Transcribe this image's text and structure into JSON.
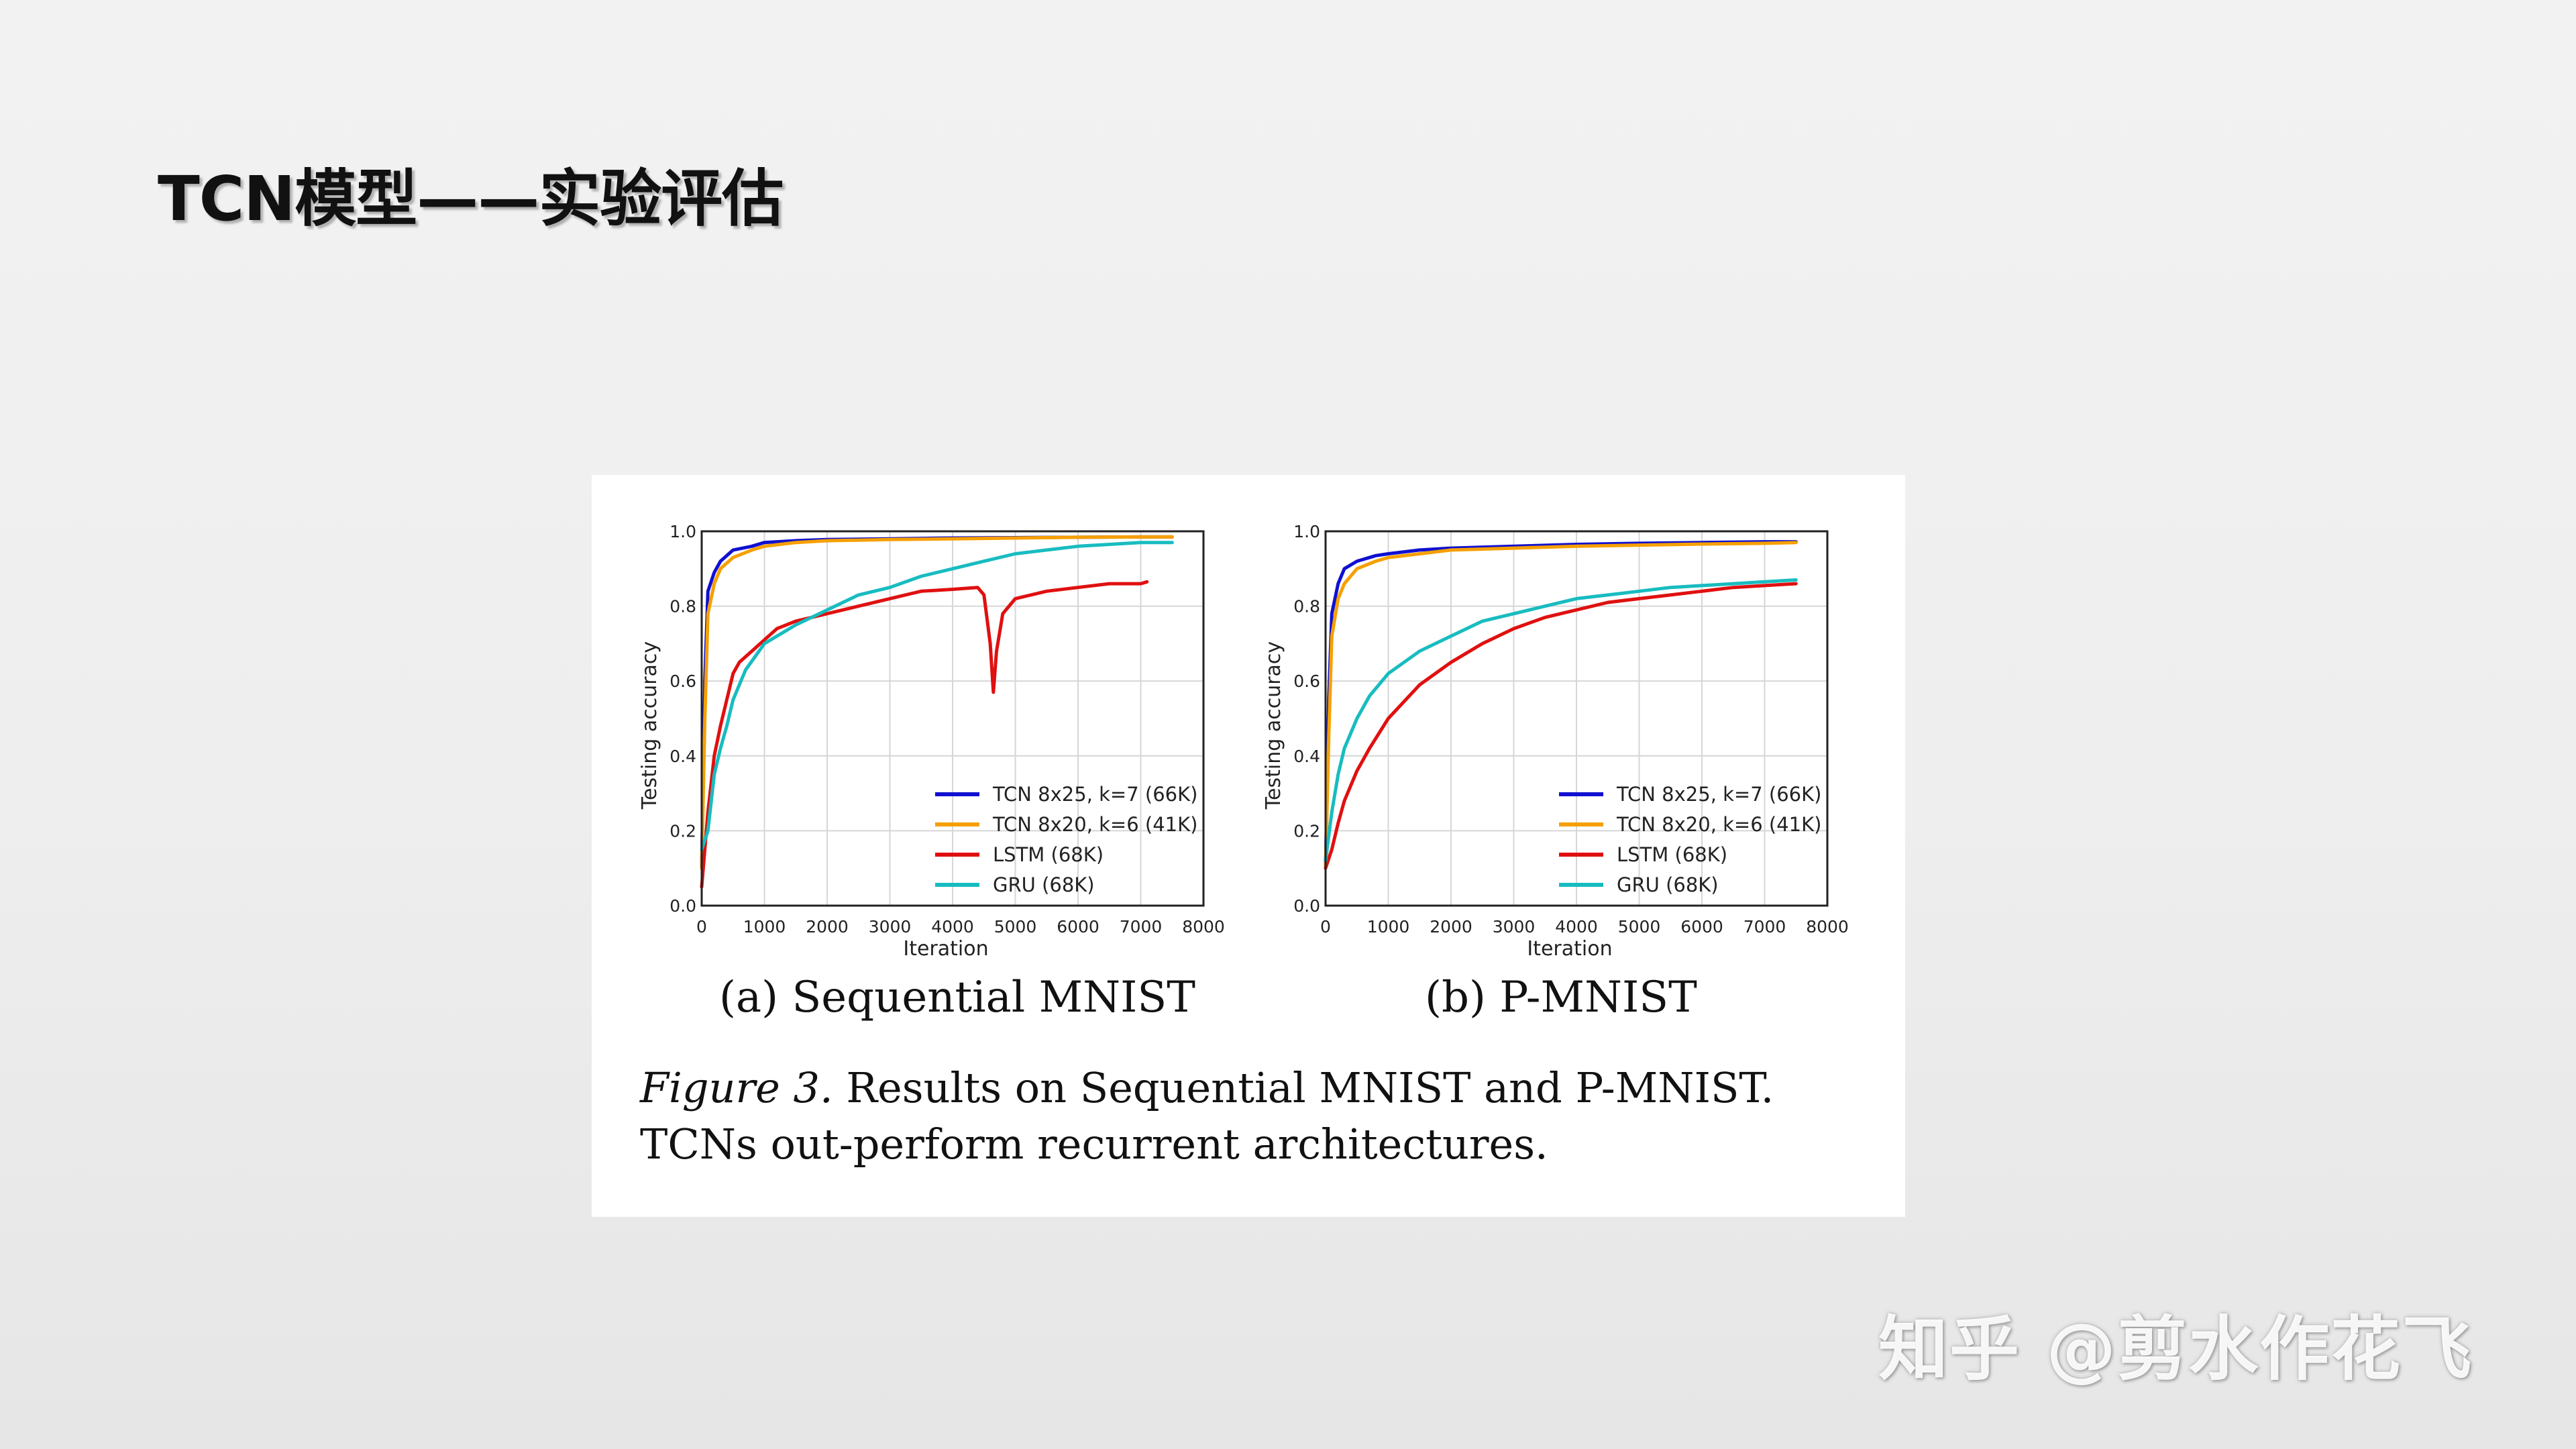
{
  "slide": {
    "title": "TCN模型——实验评估",
    "watermark": "知乎 @剪水作花飞"
  },
  "figure": {
    "caption_label": "Figure 3.",
    "caption_text": " Results on Sequential MNIST and P-MNIST. TCNs out-perform recurrent architectures.",
    "colors": {
      "TCN 8x25, k=7 (66K)": "#1010d0",
      "TCN 8x20, k=6 (41K)": "#f5a000",
      "LSTM (68K)": "#e01010",
      "GRU (68K)": "#18bcc0"
    }
  },
  "chart_data": [
    {
      "type": "line",
      "subtitle": "(a) Sequential MNIST",
      "xlabel": "Iteration",
      "ylabel": "Testing accuracy",
      "xlim": [
        0,
        8000
      ],
      "ylim": [
        0,
        1.0
      ],
      "xticks": [
        "0",
        "1000",
        "2000",
        "3000",
        "4000",
        "5000",
        "6000",
        "7000",
        "8000"
      ],
      "yticks": [
        "0.0",
        "0.2",
        "0.4",
        "0.6",
        "0.8",
        "1.0"
      ],
      "grid": true,
      "legend_position": "bottom-right",
      "series": [
        {
          "name": "TCN 8x25, k=7 (66K)",
          "x": [
            0,
            50,
            100,
            200,
            300,
            500,
            800,
            1000,
            1500,
            2000,
            3000,
            4000,
            5000,
            6000,
            7000,
            7500
          ],
          "y": [
            0.1,
            0.6,
            0.84,
            0.89,
            0.92,
            0.95,
            0.96,
            0.97,
            0.975,
            0.978,
            0.98,
            0.982,
            0.983,
            0.984,
            0.985,
            0.985
          ]
        },
        {
          "name": "TCN 8x20, k=6 (41K)",
          "x": [
            0,
            50,
            100,
            200,
            300,
            500,
            800,
            1000,
            1500,
            2000,
            3000,
            4000,
            5000,
            6000,
            7000,
            7500
          ],
          "y": [
            0.1,
            0.5,
            0.78,
            0.86,
            0.9,
            0.93,
            0.95,
            0.96,
            0.97,
            0.975,
            0.978,
            0.98,
            0.982,
            0.984,
            0.985,
            0.985
          ]
        },
        {
          "name": "LSTM (68K)",
          "x": [
            0,
            100,
            200,
            300,
            400,
            500,
            600,
            800,
            1000,
            1200,
            1500,
            2000,
            2500,
            3000,
            3500,
            4000,
            4400,
            4500,
            4600,
            4650,
            4700,
            4800,
            5000,
            5500,
            6000,
            6500,
            7000,
            7100
          ],
          "y": [
            0.05,
            0.25,
            0.4,
            0.48,
            0.55,
            0.62,
            0.65,
            0.68,
            0.71,
            0.74,
            0.76,
            0.78,
            0.8,
            0.82,
            0.84,
            0.845,
            0.85,
            0.83,
            0.7,
            0.57,
            0.68,
            0.78,
            0.82,
            0.84,
            0.85,
            0.86,
            0.86,
            0.865
          ]
        },
        {
          "name": "GRU (68K)",
          "x": [
            0,
            100,
            200,
            300,
            400,
            500,
            700,
            1000,
            1500,
            2000,
            2500,
            3000,
            3500,
            4000,
            4500,
            5000,
            5500,
            6000,
            6500,
            7000,
            7500
          ],
          "y": [
            0.15,
            0.2,
            0.35,
            0.42,
            0.48,
            0.55,
            0.63,
            0.7,
            0.75,
            0.79,
            0.83,
            0.85,
            0.88,
            0.9,
            0.92,
            0.94,
            0.95,
            0.96,
            0.965,
            0.97,
            0.97
          ]
        }
      ]
    },
    {
      "type": "line",
      "subtitle": "(b) P-MNIST",
      "xlabel": "Iteration",
      "ylabel": "Testing accuracy",
      "xlim": [
        0,
        8000
      ],
      "ylim": [
        0,
        1.0
      ],
      "xticks": [
        "0",
        "1000",
        "2000",
        "3000",
        "4000",
        "5000",
        "6000",
        "7000",
        "8000"
      ],
      "yticks": [
        "0.0",
        "0.2",
        "0.4",
        "0.6",
        "0.8",
        "1.0"
      ],
      "grid": true,
      "legend_position": "bottom-right",
      "series": [
        {
          "name": "TCN 8x25, k=7 (66K)",
          "x": [
            0,
            50,
            100,
            200,
            300,
            500,
            800,
            1000,
            1500,
            2000,
            3000,
            4000,
            5000,
            6000,
            7000,
            7500
          ],
          "y": [
            0.1,
            0.55,
            0.78,
            0.86,
            0.9,
            0.92,
            0.935,
            0.94,
            0.95,
            0.955,
            0.96,
            0.965,
            0.968,
            0.97,
            0.972,
            0.972
          ]
        },
        {
          "name": "TCN 8x20, k=6 (41K)",
          "x": [
            0,
            50,
            100,
            200,
            300,
            500,
            800,
            1000,
            1500,
            2000,
            3000,
            4000,
            5000,
            6000,
            7000,
            7500
          ],
          "y": [
            0.1,
            0.45,
            0.72,
            0.82,
            0.86,
            0.9,
            0.92,
            0.93,
            0.94,
            0.95,
            0.955,
            0.96,
            0.963,
            0.966,
            0.968,
            0.97
          ]
        },
        {
          "name": "LSTM (68K)",
          "x": [
            0,
            100,
            200,
            300,
            500,
            700,
            1000,
            1500,
            2000,
            2500,
            3000,
            3500,
            4000,
            4500,
            5000,
            5500,
            6000,
            6500,
            7000,
            7500
          ],
          "y": [
            0.1,
            0.15,
            0.22,
            0.28,
            0.36,
            0.42,
            0.5,
            0.59,
            0.65,
            0.7,
            0.74,
            0.77,
            0.79,
            0.81,
            0.82,
            0.83,
            0.84,
            0.85,
            0.855,
            0.86
          ]
        },
        {
          "name": "GRU (68K)",
          "x": [
            0,
            100,
            200,
            300,
            500,
            700,
            1000,
            1500,
            2000,
            2500,
            3000,
            3500,
            4000,
            4500,
            5000,
            5500,
            6000,
            6500,
            7000,
            7500
          ],
          "y": [
            0.12,
            0.25,
            0.35,
            0.42,
            0.5,
            0.56,
            0.62,
            0.68,
            0.72,
            0.76,
            0.78,
            0.8,
            0.82,
            0.83,
            0.84,
            0.85,
            0.855,
            0.86,
            0.865,
            0.87
          ]
        }
      ]
    }
  ]
}
